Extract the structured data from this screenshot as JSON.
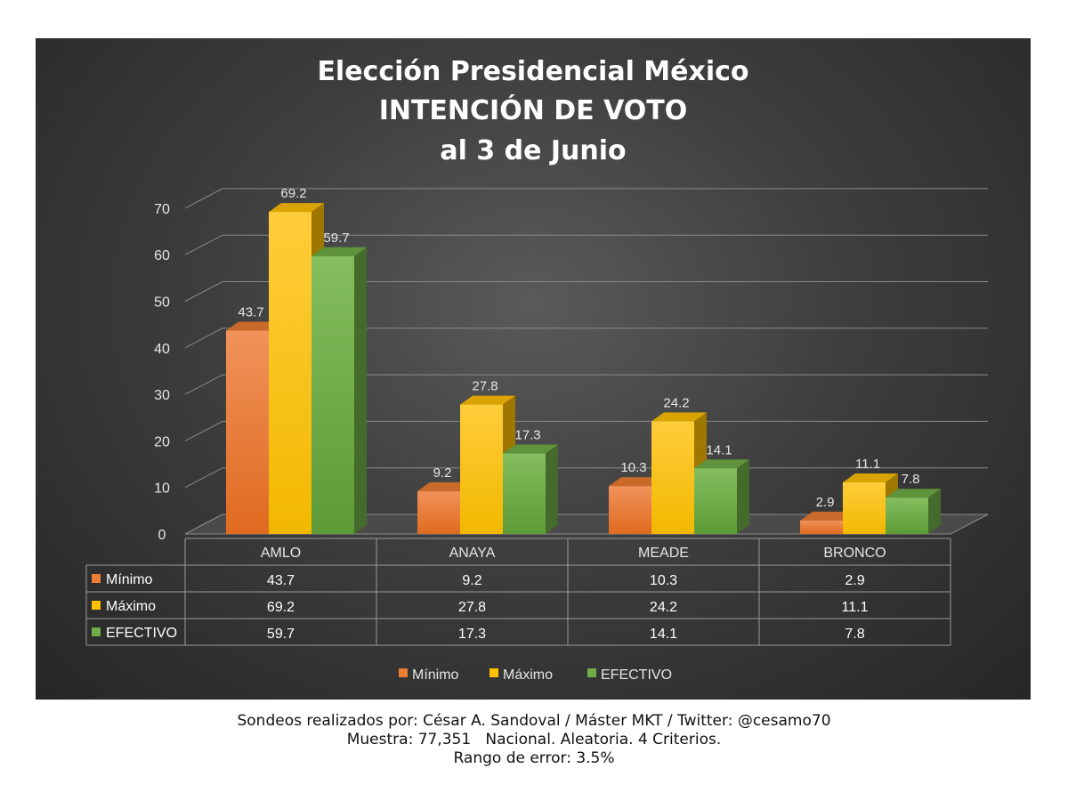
{
  "chart_data": {
    "type": "bar",
    "title": [
      "Elección Presidencial México",
      "INTENCIÓN  DE VOTO",
      "al 3 de Junio"
    ],
    "categories": [
      "AMLO",
      "ANAYA",
      "MEADE",
      "BRONCO"
    ],
    "series": [
      {
        "name": "Mínimo",
        "color": "#ED7D31",
        "values": [
          43.7,
          9.2,
          10.3,
          2.9
        ]
      },
      {
        "name": "Máximo",
        "color": "#FFC000",
        "values": [
          69.2,
          27.8,
          24.2,
          11.1
        ]
      },
      {
        "name": "EFECTIVO",
        "color": "#70AD47",
        "values": [
          59.7,
          17.3,
          14.1,
          7.8
        ]
      }
    ],
    "ylim": [
      0,
      70
    ],
    "yticks": [
      0,
      10,
      20,
      30,
      40,
      50,
      60,
      70
    ],
    "data_table": [
      [
        "43.7",
        "9.2",
        "10.3",
        "2.9"
      ],
      [
        "69.2",
        "27.8",
        "24.2",
        "11.1"
      ],
      [
        "59.7",
        "17.3",
        "14.1",
        "7.8"
      ]
    ],
    "legend": "bottom",
    "grid": true
  },
  "footer": {
    "line1": "Sondeos realizados por: César A. Sandoval / Máster MKT / Twitter: @cesamo70",
    "line2": "Muestra: 77,351   Nacional. Aleatoria. 4 Criterios.",
    "line3": "Rango de error: 3.5%"
  }
}
